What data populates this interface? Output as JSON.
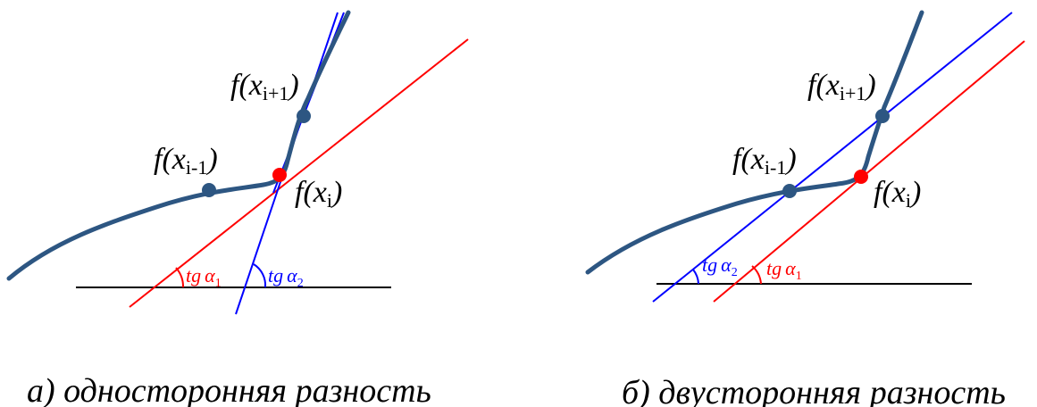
{
  "colors": {
    "curve": "#2d5682",
    "point": "#2d5682",
    "point_highlight": "#ff0000",
    "red_line": "#ff0000",
    "blue_line": "#0000ff",
    "axis": "#000000"
  },
  "panels": [
    {
      "caption": "а) односторонняя разность",
      "labels": {
        "f_prev": {
          "f": "f(",
          "x": "x",
          "sub": "i-1",
          "close": ")"
        },
        "f_next": {
          "f": "f(",
          "x": "x",
          "sub": "i+1",
          "close": ")"
        },
        "f_cur": {
          "f": "f(",
          "x": "x",
          "sub": "i",
          "close": ")"
        }
      },
      "angles": [
        {
          "name": "tg α1",
          "tg": "tg",
          "alpha": "α",
          "sub": "1",
          "color": "#ff0000"
        },
        {
          "name": "tg α2",
          "tg": "tg",
          "alpha": "α",
          "sub": "2",
          "color": "#0000ff"
        }
      ]
    },
    {
      "caption": "б) двусторонняя разность",
      "labels": {
        "f_prev": {
          "f": "f(",
          "x": "x",
          "sub": "i-1",
          "close": ")"
        },
        "f_next": {
          "f": "f(",
          "x": "x",
          "sub": "i+1",
          "close": ")"
        },
        "f_cur": {
          "f": "f(",
          "x": "x",
          "sub": "i",
          "close": ")"
        }
      },
      "angles": [
        {
          "name": "tg α2",
          "tg": "tg",
          "alpha": "α",
          "sub": "2",
          "color": "#0000ff"
        },
        {
          "name": "tg α1",
          "tg": "tg",
          "alpha": "α",
          "sub": "1",
          "color": "#ff0000"
        }
      ]
    }
  ]
}
